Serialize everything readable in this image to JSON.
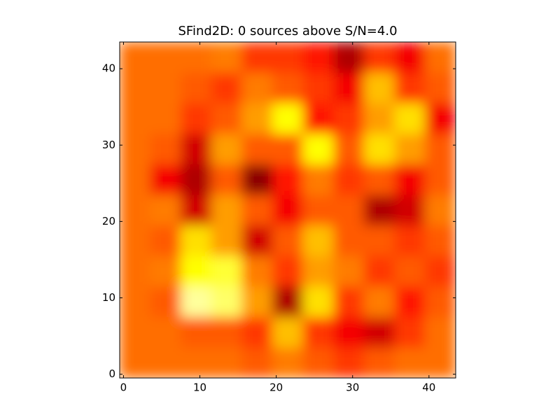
{
  "chart_data": {
    "type": "heatmap",
    "title": "SFind2D: 0 sources above S/N=4.0",
    "colormap": "hot",
    "zlim": [
      0,
      1
    ],
    "x_edges": [
      -0.5,
      3.5,
      7.5,
      11.5,
      15.5,
      19.5,
      23.5,
      27.5,
      31.5,
      35.5,
      39.5,
      43.5
    ],
    "y_edges": [
      -0.5,
      3.5,
      7.5,
      11.5,
      15.5,
      19.5,
      23.5,
      27.5,
      31.5,
      35.5,
      39.5,
      43.5
    ],
    "z": [
      [
        0.53,
        0.53,
        0.53,
        0.53,
        0.5,
        0.55,
        0.5,
        0.45,
        0.5,
        0.53,
        0.53
      ],
      [
        0.53,
        0.53,
        0.5,
        0.5,
        0.45,
        0.65,
        0.45,
        0.35,
        0.3,
        0.45,
        0.53
      ],
      [
        0.53,
        0.5,
        0.9,
        0.85,
        0.6,
        0.25,
        0.7,
        0.45,
        0.55,
        0.4,
        0.5
      ],
      [
        0.53,
        0.55,
        0.75,
        0.8,
        0.55,
        0.45,
        0.6,
        0.55,
        0.45,
        0.5,
        0.45
      ],
      [
        0.53,
        0.5,
        0.7,
        0.6,
        0.3,
        0.5,
        0.65,
        0.5,
        0.5,
        0.45,
        0.5
      ],
      [
        0.53,
        0.55,
        0.3,
        0.6,
        0.5,
        0.35,
        0.5,
        0.5,
        0.25,
        0.3,
        0.55
      ],
      [
        0.53,
        0.35,
        0.25,
        0.5,
        0.2,
        0.4,
        0.55,
        0.45,
        0.5,
        0.35,
        0.5
      ],
      [
        0.53,
        0.5,
        0.3,
        0.6,
        0.5,
        0.5,
        0.75,
        0.5,
        0.7,
        0.6,
        0.5
      ],
      [
        0.53,
        0.53,
        0.45,
        0.5,
        0.6,
        0.75,
        0.4,
        0.45,
        0.6,
        0.7,
        0.35
      ],
      [
        0.53,
        0.53,
        0.5,
        0.45,
        0.55,
        0.5,
        0.45,
        0.35,
        0.65,
        0.45,
        0.5
      ],
      [
        0.53,
        0.53,
        0.53,
        0.55,
        0.45,
        0.45,
        0.4,
        0.25,
        0.45,
        0.35,
        0.53
      ]
    ],
    "xlim": [
      -0.5,
      43.5
    ],
    "ylim": [
      -0.5,
      43.5
    ],
    "xticks": [
      0,
      10,
      20,
      30,
      40
    ],
    "yticks": [
      0,
      10,
      20,
      30,
      40
    ]
  }
}
